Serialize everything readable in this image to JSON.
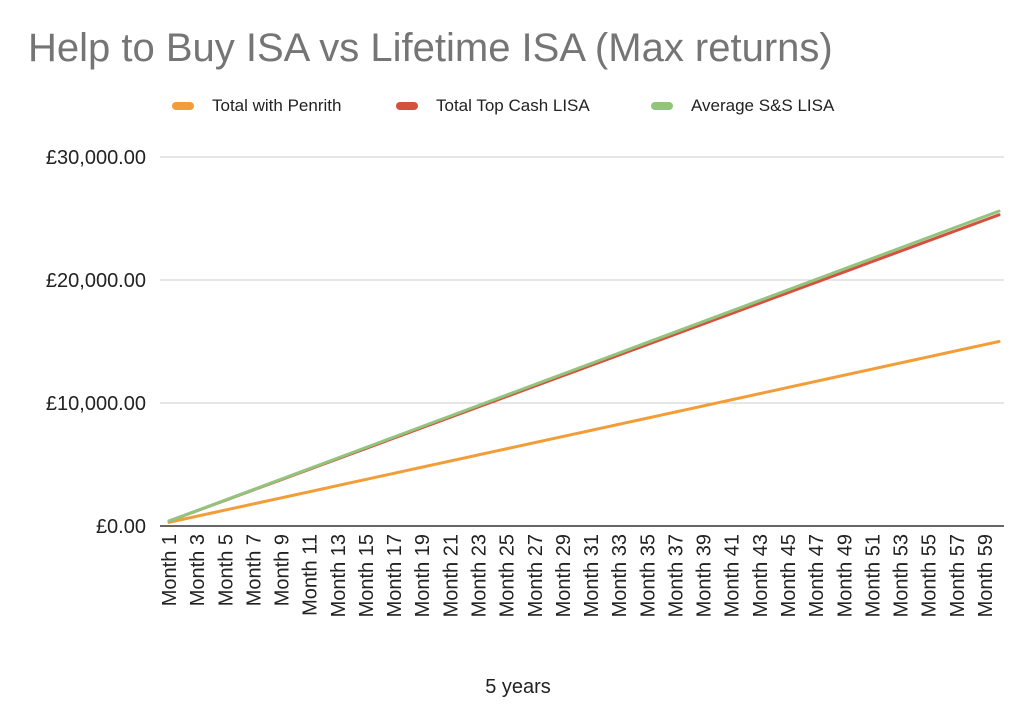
{
  "chart_data": {
    "type": "line",
    "title": "Help to Buy ISA vs Lifetime ISA (Max returns)",
    "xlabel": "5 years",
    "ylabel": "",
    "categories": [
      "Month 1",
      "Month 2",
      "Month 3",
      "Month 4",
      "Month 5",
      "Month 6",
      "Month 7",
      "Month 8",
      "Month 9",
      "Month 10",
      "Month 11",
      "Month 12",
      "Month 13",
      "Month 14",
      "Month 15",
      "Month 16",
      "Month 17",
      "Month 18",
      "Month 19",
      "Month 20",
      "Month 21",
      "Month 22",
      "Month 23",
      "Month 24",
      "Month 25",
      "Month 26",
      "Month 27",
      "Month 28",
      "Month 29",
      "Month 30",
      "Month 31",
      "Month 32",
      "Month 33",
      "Month 34",
      "Month 35",
      "Month 36",
      "Month 37",
      "Month 38",
      "Month 39",
      "Month 40",
      "Month 41",
      "Month 42",
      "Month 43",
      "Month 44",
      "Month 45",
      "Month 46",
      "Month 47",
      "Month 48",
      "Month 49",
      "Month 50",
      "Month 51",
      "Month 52",
      "Month 53",
      "Month 54",
      "Month 55",
      "Month 56",
      "Month 57",
      "Month 58",
      "Month 59",
      "Month 60"
    ],
    "tick_labels": [
      "Month 1",
      "Month 3",
      "Month 5",
      "Month 7",
      "Month 9",
      "Month 11",
      "Month 13",
      "Month 15",
      "Month 17",
      "Month 19",
      "Month 21",
      "Month 23",
      "Month 25",
      "Month 27",
      "Month 29",
      "Month 31",
      "Month 33",
      "Month 35",
      "Month 37",
      "Month 39",
      "Month 41",
      "Month 43",
      "Month 45",
      "Month 47",
      "Month 49",
      "Month 51",
      "Month 53",
      "Month 55",
      "Month 57",
      "Month 59"
    ],
    "series": [
      {
        "name": "Total with Penrith",
        "color": "#f29d38",
        "start": 300,
        "end": 15000
      },
      {
        "name": "Total Top Cash LISA",
        "color": "#d5503f",
        "start": 400,
        "end": 25300
      },
      {
        "name": "Average S&S LISA",
        "color": "#93c47d",
        "start": 400,
        "end": 25600
      }
    ],
    "ylim": [
      0,
      30000
    ],
    "y_ticks": [
      0,
      10000,
      20000,
      30000
    ],
    "y_tick_labels": [
      "£0.00",
      "£10,000.00",
      "£20,000.00",
      "£30,000.00"
    ],
    "grid": true,
    "legend_position": "top"
  }
}
